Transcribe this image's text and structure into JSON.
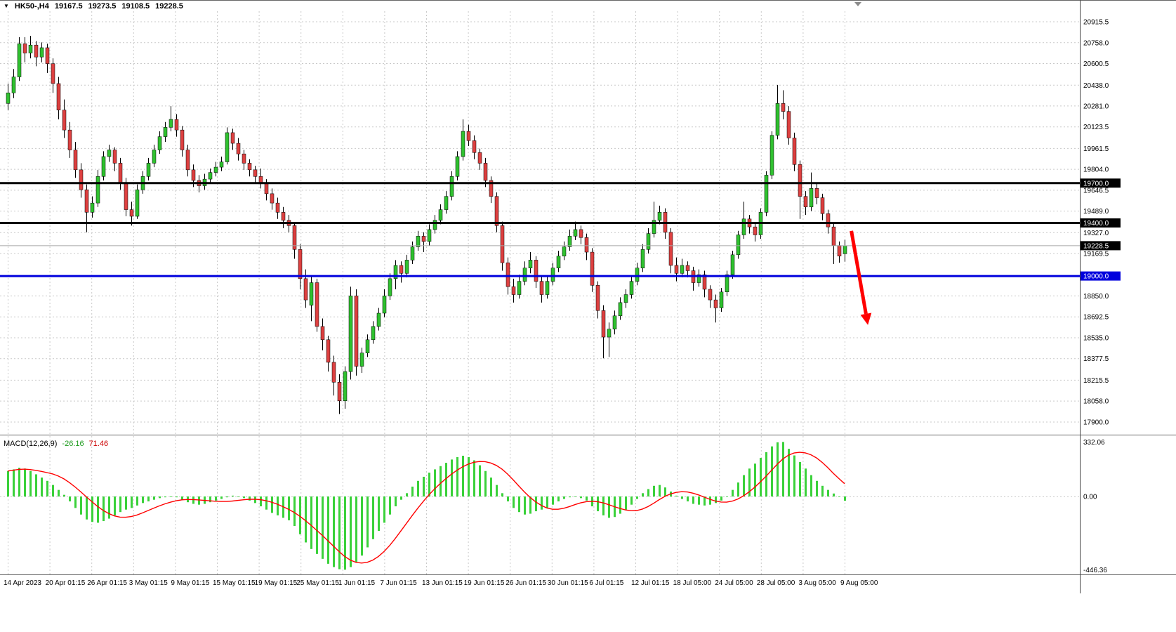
{
  "header": {
    "dropdown_icon": "▼",
    "symbol_timeframe": "HK50-,H4",
    "open": "19167.5",
    "high": "19273.5",
    "low": "19108.5",
    "close": "19228.5"
  },
  "macd_panel": {
    "label": "MACD(12,26,9)",
    "main_value": "-26.16",
    "signal_value": "71.46",
    "axis_max_label": "332.06",
    "axis_zero_label": "0.00",
    "axis_min_label": "-446.36"
  },
  "levels": [
    {
      "name": "resistance-19700",
      "price": 19700.0,
      "color": "#000000",
      "width": 3,
      "badge": "19700.0",
      "badge_bg": "#000000"
    },
    {
      "name": "support-19400",
      "price": 19400.0,
      "color": "#000000",
      "width": 3,
      "badge": "19400.0",
      "badge_bg": "#000000"
    },
    {
      "name": "current-price",
      "price": 19228.5,
      "color": "#a8a8a8",
      "width": 1,
      "badge": "19228.5",
      "badge_bg": "#000000"
    },
    {
      "name": "support-19000",
      "price": 19000.0,
      "color": "#0000dd",
      "width": 3,
      "badge": "19000.0",
      "badge_bg": "#0000dd"
    }
  ],
  "annotation_arrow": {
    "color": "#ff0000",
    "from": {
      "bar": 150.2,
      "price": 19340
    },
    "to": {
      "bar": 152.8,
      "price": 18715
    }
  },
  "colors": {
    "background": "#ffffff",
    "grid": "#c9c9c9",
    "bull": "#2fc12f",
    "bear": "#dd4040",
    "wick": "#000000",
    "macd_histogram": "#3ad13a",
    "macd_signal": "#ff0000",
    "axis_text": "#000000",
    "badge_text": "#ffffff",
    "frame": "#666666",
    "arrow": "#ff0000"
  },
  "chart_data": {
    "type": "candlestick",
    "symbol": "HK50-",
    "timeframe": "H4",
    "title": "HK50-,H4",
    "price_range": [
      17900.0,
      20915.5
    ],
    "y_ticks": [
      20915.5,
      20758.0,
      20600.5,
      20438.0,
      20281.0,
      20123.5,
      19961.5,
      19804.0,
      19646.5,
      19489.0,
      19327.0,
      19169.5,
      18850.0,
      18692.5,
      18535.0,
      18377.5,
      18215.5,
      18058.0,
      17900.0
    ],
    "x_labels": [
      "14 Apr 2023",
      "20 Apr 01:15",
      "26 Apr 01:15",
      "3 May 01:15",
      "9 May 01:15",
      "15 May 01:15",
      "19 May 01:15",
      "25 May 01:15",
      "1 Jun 01:15",
      "7 Jun 01:15",
      "13 Jun 01:15",
      "19 Jun 01:15",
      "26 Jun 01:15",
      "30 Jun 01:15",
      "6 Jul 01:15",
      "12 Jul 01:15",
      "18 Jul 05:00",
      "24 Jul 05:00",
      "28 Jul 05:00",
      "3 Aug 05:00",
      "9 Aug 05:00"
    ],
    "horizontal_levels": [
      19700.0,
      19400.0,
      19000.0
    ],
    "current_price": 19228.5,
    "candles": [
      [
        20300,
        20450,
        20250,
        20380
      ],
      [
        20380,
        20560,
        20340,
        20500
      ],
      [
        20500,
        20800,
        20470,
        20750
      ],
      [
        20750,
        20800,
        20610,
        20680
      ],
      [
        20680,
        20810,
        20640,
        20740
      ],
      [
        20740,
        20770,
        20580,
        20650
      ],
      [
        20650,
        20760,
        20610,
        20720
      ],
      [
        20720,
        20750,
        20530,
        20600
      ],
      [
        20600,
        20640,
        20380,
        20450
      ],
      [
        20450,
        20500,
        20180,
        20250
      ],
      [
        20250,
        20330,
        20040,
        20100
      ],
      [
        20100,
        20160,
        19890,
        19950
      ],
      [
        19950,
        20010,
        19740,
        19800
      ],
      [
        19800,
        19850,
        19590,
        19650
      ],
      [
        19650,
        19690,
        19330,
        19480
      ],
      [
        19480,
        19600,
        19440,
        19550
      ],
      [
        19550,
        19800,
        19520,
        19750
      ],
      [
        19750,
        19940,
        19720,
        19900
      ],
      [
        19900,
        19990,
        19860,
        19950
      ],
      [
        19950,
        19970,
        19790,
        19850
      ],
      [
        19850,
        19890,
        19650,
        19700
      ],
      [
        19700,
        19740,
        19450,
        19500
      ],
      [
        19500,
        19560,
        19380,
        19450
      ],
      [
        19450,
        19690,
        19430,
        19650
      ],
      [
        19650,
        19790,
        19620,
        19750
      ],
      [
        19750,
        19890,
        19720,
        19850
      ],
      [
        19850,
        19990,
        19820,
        19950
      ],
      [
        19950,
        20090,
        19920,
        20050
      ],
      [
        20050,
        20160,
        20010,
        20120
      ],
      [
        20120,
        20280,
        20090,
        20180
      ],
      [
        20180,
        20220,
        20050,
        20100
      ],
      [
        20100,
        20130,
        19900,
        19950
      ],
      [
        19950,
        19990,
        19750,
        19800
      ],
      [
        19800,
        19840,
        19670,
        19720
      ],
      [
        19720,
        19760,
        19630,
        19680
      ],
      [
        19680,
        19770,
        19650,
        19730
      ],
      [
        19730,
        19810,
        19700,
        19780
      ],
      [
        19780,
        19860,
        19750,
        19820
      ],
      [
        19820,
        19900,
        19790,
        19860
      ],
      [
        19860,
        20120,
        19840,
        20080
      ],
      [
        20080,
        20110,
        19950,
        20000
      ],
      [
        20000,
        20040,
        19870,
        19920
      ],
      [
        19920,
        19950,
        19800,
        19850
      ],
      [
        19850,
        19880,
        19750,
        19800
      ],
      [
        19800,
        19830,
        19700,
        19750
      ],
      [
        19750,
        19810,
        19660,
        19700
      ],
      [
        19700,
        19730,
        19570,
        19620
      ],
      [
        19620,
        19660,
        19500,
        19550
      ],
      [
        19550,
        19590,
        19430,
        19480
      ],
      [
        19480,
        19520,
        19360,
        19420
      ],
      [
        19420,
        19460,
        19330,
        19380
      ],
      [
        19380,
        19400,
        19130,
        19200
      ],
      [
        19200,
        19240,
        18900,
        18980
      ],
      [
        18980,
        19050,
        18760,
        18820
      ],
      [
        18780,
        19000,
        18660,
        18950
      ],
      [
        18950,
        18980,
        18580,
        18620
      ],
      [
        18620,
        18680,
        18440,
        18520
      ],
      [
        18520,
        18550,
        18280,
        18350
      ],
      [
        18350,
        18400,
        18100,
        18200
      ],
      [
        18200,
        18260,
        17960,
        18060
      ],
      [
        18060,
        18320,
        18000,
        18280
      ],
      [
        18280,
        18920,
        18220,
        18850
      ],
      [
        18850,
        18900,
        18250,
        18320
      ],
      [
        18320,
        18460,
        18270,
        18420
      ],
      [
        18420,
        18560,
        18390,
        18520
      ],
      [
        18520,
        18660,
        18490,
        18620
      ],
      [
        18620,
        18760,
        18590,
        18720
      ],
      [
        18720,
        18900,
        18690,
        18850
      ],
      [
        18850,
        19020,
        18820,
        18980
      ],
      [
        18980,
        19120,
        18900,
        19080
      ],
      [
        19080,
        19110,
        18950,
        19020
      ],
      [
        19020,
        19160,
        18990,
        19120
      ],
      [
        19120,
        19260,
        19090,
        19220
      ],
      [
        19220,
        19340,
        19190,
        19300
      ],
      [
        19300,
        19330,
        19180,
        19260
      ],
      [
        19260,
        19390,
        19230,
        19350
      ],
      [
        19350,
        19460,
        19320,
        19420
      ],
      [
        19420,
        19540,
        19390,
        19500
      ],
      [
        19500,
        19640,
        19470,
        19600
      ],
      [
        19600,
        19790,
        19570,
        19750
      ],
      [
        19750,
        19940,
        19720,
        19900
      ],
      [
        19900,
        20180,
        19870,
        20090
      ],
      [
        20090,
        20140,
        19980,
        20020
      ],
      [
        20020,
        20060,
        19880,
        19930
      ],
      [
        19930,
        19960,
        19800,
        19850
      ],
      [
        19850,
        19890,
        19670,
        19720
      ],
      [
        19720,
        19750,
        19550,
        19600
      ],
      [
        19600,
        19630,
        19330,
        19380
      ],
      [
        19380,
        19410,
        19040,
        19100
      ],
      [
        19100,
        19140,
        18860,
        18920
      ],
      [
        18920,
        18980,
        18800,
        18860
      ],
      [
        18860,
        19010,
        18830,
        18960
      ],
      [
        18960,
        19110,
        18930,
        19060
      ],
      [
        19060,
        19180,
        19020,
        19120
      ],
      [
        19120,
        19150,
        18910,
        18960
      ],
      [
        18960,
        19000,
        18800,
        18860
      ],
      [
        18860,
        19000,
        18830,
        18960
      ],
      [
        18960,
        19100,
        18930,
        19060
      ],
      [
        19060,
        19190,
        19030,
        19150
      ],
      [
        19150,
        19260,
        19120,
        19220
      ],
      [
        19220,
        19350,
        19190,
        19300
      ],
      [
        19300,
        19410,
        19270,
        19350
      ],
      [
        19350,
        19380,
        19240,
        19290
      ],
      [
        19290,
        19320,
        19120,
        19180
      ],
      [
        19180,
        19210,
        18880,
        18930
      ],
      [
        18930,
        18960,
        18680,
        18740
      ],
      [
        18740,
        18780,
        18380,
        18540
      ],
      [
        18540,
        18650,
        18390,
        18600
      ],
      [
        18600,
        18740,
        18560,
        18700
      ],
      [
        18700,
        18840,
        18670,
        18800
      ],
      [
        18800,
        18900,
        18760,
        18860
      ],
      [
        18860,
        19000,
        18830,
        18960
      ],
      [
        18960,
        19100,
        18930,
        19060
      ],
      [
        19060,
        19240,
        19030,
        19200
      ],
      [
        19200,
        19360,
        19170,
        19320
      ],
      [
        19320,
        19560,
        19290,
        19420
      ],
      [
        19420,
        19530,
        19390,
        19480
      ],
      [
        19480,
        19510,
        19280,
        19330
      ],
      [
        19330,
        19360,
        19020,
        19080
      ],
      [
        19080,
        19140,
        18960,
        19020
      ],
      [
        19020,
        19130,
        18990,
        19080
      ],
      [
        19080,
        19110,
        18990,
        19040
      ],
      [
        19040,
        19070,
        18890,
        18950
      ],
      [
        18950,
        19050,
        18920,
        19010
      ],
      [
        19010,
        19040,
        18840,
        18900
      ],
      [
        18900,
        18930,
        18760,
        18820
      ],
      [
        18820,
        18860,
        18650,
        18760
      ],
      [
        18760,
        18910,
        18730,
        18880
      ],
      [
        18880,
        19040,
        18850,
        19010
      ],
      [
        19010,
        19190,
        18980,
        19160
      ],
      [
        19160,
        19340,
        19130,
        19310
      ],
      [
        19310,
        19560,
        19280,
        19430
      ],
      [
        19430,
        19460,
        19320,
        19370
      ],
      [
        19370,
        19400,
        19260,
        19310
      ],
      [
        19310,
        19510,
        19280,
        19480
      ],
      [
        19480,
        19790,
        19450,
        19760
      ],
      [
        19760,
        20090,
        19730,
        20060
      ],
      [
        20060,
        20440,
        20030,
        20300
      ],
      [
        20300,
        20400,
        20180,
        20240
      ],
      [
        20240,
        20280,
        19990,
        20040
      ],
      [
        20040,
        20080,
        19790,
        19840
      ],
      [
        19840,
        19870,
        19430,
        19600
      ],
      [
        19600,
        19640,
        19460,
        19520
      ],
      [
        19520,
        19780,
        19490,
        19660
      ],
      [
        19660,
        19700,
        19540,
        19590
      ],
      [
        19590,
        19620,
        19420,
        19470
      ],
      [
        19470,
        19500,
        19320,
        19370
      ],
      [
        19370,
        19400,
        19090,
        19230
      ],
      [
        19230,
        19260,
        19100,
        19150
      ],
      [
        19167.5,
        19273.5,
        19108.5,
        19228.5
      ]
    ],
    "macd": {
      "name": "MACD",
      "params": [
        12,
        26,
        9
      ],
      "range": [
        -446.36,
        332.06
      ],
      "last_main": -26.16,
      "last_signal": 71.46,
      "values": [
        155,
        165,
        175,
        170,
        155,
        135,
        115,
        95,
        70,
        40,
        10,
        -30,
        -70,
        -110,
        -140,
        -155,
        -160,
        -150,
        -135,
        -115,
        -95,
        -80,
        -70,
        -55,
        -40,
        -30,
        -20,
        -10,
        -5,
        0,
        -5,
        -20,
        -35,
        -45,
        -50,
        -45,
        -35,
        -25,
        -15,
        -5,
        5,
        0,
        -10,
        -25,
        -40,
        -60,
        -80,
        -100,
        -115,
        -130,
        -145,
        -180,
        -230,
        -280,
        -320,
        -350,
        -380,
        -410,
        -430,
        -443,
        -446,
        -430,
        -400,
        -360,
        -310,
        -260,
        -210,
        -160,
        -110,
        -60,
        -20,
        20,
        60,
        95,
        120,
        145,
        165,
        185,
        205,
        225,
        240,
        248,
        240,
        220,
        190,
        155,
        115,
        70,
        20,
        -30,
        -70,
        -95,
        -110,
        -105,
        -90,
        -80,
        -70,
        -50,
        -30,
        -15,
        -5,
        0,
        -10,
        -25,
        -60,
        -90,
        -115,
        -130,
        -125,
        -105,
        -80,
        -50,
        -15,
        20,
        45,
        65,
        70,
        55,
        30,
        5,
        -15,
        -30,
        -45,
        -50,
        -55,
        -50,
        -40,
        -25,
        0,
        40,
        85,
        130,
        170,
        200,
        235,
        270,
        305,
        330,
        332,
        290,
        250,
        210,
        170,
        130,
        95,
        65,
        40,
        18,
        0,
        -26.16
      ]
    }
  }
}
